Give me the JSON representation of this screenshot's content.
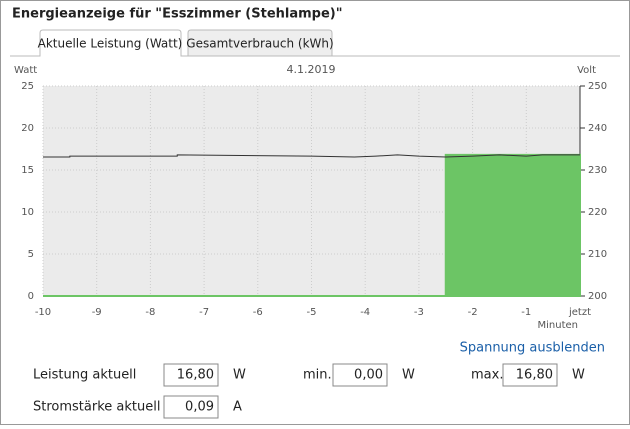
{
  "header": {
    "title": "Energieanzeige für \"Esszimmer (Stehlampe)\""
  },
  "tabs": [
    "Aktuelle Leistung (Watt)",
    "Gesamtverbrauch (kWh)"
  ],
  "chart_data": {
    "type": "area",
    "title": "4.1.2019",
    "y_label": "Watt",
    "y2_label": "Volt",
    "x_label": "Minuten",
    "xlim": [
      -10,
      0
    ],
    "xticks": [
      -10,
      -9,
      -8,
      -7,
      -6,
      -5,
      -4,
      -3,
      -2,
      -1,
      {
        "value": 0,
        "label": "jetzt"
      }
    ],
    "ylim": [
      0,
      25
    ],
    "yticks": [
      0,
      5,
      10,
      15,
      20,
      25
    ],
    "y2lim": [
      200,
      250
    ],
    "y2ticks": [
      200,
      210,
      220,
      230,
      240,
      250
    ],
    "grid": true,
    "series": [
      {
        "color": "#6cc565",
        "axis": "y",
        "x": [
          -10,
          -2.5,
          -2.5,
          0
        ],
        "values": [
          0,
          0,
          16.8,
          16.8
        ]
      },
      {
        "color": "#333333",
        "axis": "y2",
        "x": [
          -10,
          -9.5,
          -9.5,
          -7.5,
          -7.5,
          -5,
          -4.2,
          -3.8,
          -3.4,
          -3,
          -2.5,
          -2,
          -1.5,
          -1,
          -0.7,
          0
        ],
        "values": [
          233.1,
          233.1,
          233.3,
          233.3,
          233.6,
          233.3,
          233.1,
          233.3,
          233.6,
          233.3,
          233.1,
          233.3,
          233.6,
          233.3,
          233.6,
          233.6
        ]
      }
    ]
  },
  "link": "Spannung ausblenden",
  "form": {
    "power": {
      "label": "Leistung aktuell",
      "value": "16,80",
      "unit": "W"
    },
    "min": {
      "label": "min.",
      "value": "0,00",
      "unit": "W"
    },
    "max": {
      "label": "max.",
      "value": "16,80",
      "unit": "W"
    },
    "current": {
      "label": "Stromstärke aktuell",
      "value": "0,09",
      "unit": "A"
    }
  }
}
